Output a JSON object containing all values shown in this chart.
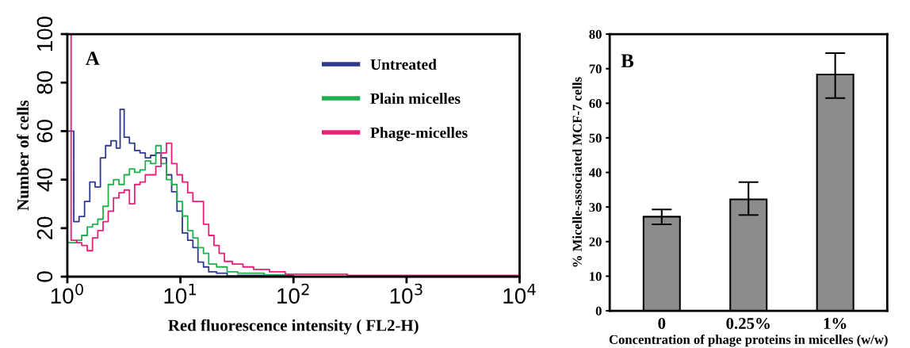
{
  "chart_data": [
    {
      "type": "step",
      "xlabel": "Red fluorescence intensity ( FL2-H)",
      "ylabel": "Number of cells",
      "log": "x",
      "xlim": [
        1,
        10000
      ],
      "ylim": [
        0,
        100
      ],
      "xticks": [
        {
          "value": 1,
          "label": "10$^{0}$"
        },
        {
          "value": 10,
          "label": "10$^{1}$"
        },
        {
          "value": 100,
          "label": "10$^{2}$"
        },
        {
          "value": 1000,
          "label": "10$^{3}$"
        },
        {
          "value": 10000,
          "label": "10$^{4}$"
        }
      ],
      "yticks": [
        0,
        20,
        40,
        60,
        80,
        100
      ],
      "grid": false,
      "legend": "top right",
      "annotations": [
        "A"
      ],
      "series": [
        {
          "name": "Untreated",
          "color": "#2b3990",
          "x": [
            1.0,
            1.05,
            1.14,
            1.27,
            1.42,
            1.58,
            1.76,
            1.96,
            2.18,
            2.43,
            2.71,
            2.93,
            3.18,
            3.54,
            3.94,
            4.39,
            4.89,
            5.45,
            6.06,
            6.75,
            7.52,
            8.37,
            9.33,
            10.4,
            11.6,
            12.9,
            14.3,
            16.0,
            17.8,
            20.9,
            25.9,
            32.1,
            55,
            100
          ],
          "values": [
            60,
            60,
            22.7,
            24.8,
            31,
            39,
            37,
            49,
            54,
            56,
            53,
            69,
            57.5,
            55,
            52,
            51,
            49,
            50,
            51,
            49,
            42,
            35,
            27,
            18,
            15,
            12,
            6,
            4,
            2,
            1.4,
            0.3,
            0.5,
            0.5,
            0.5
          ]
        },
        {
          "name": "Plain micelles",
          "color": "#1fb04b",
          "x": [
            1.0,
            1.05,
            1.21,
            1.34,
            1.5,
            1.67,
            1.86,
            2.07,
            2.3,
            2.56,
            2.86,
            3.18,
            3.54,
            3.94,
            4.39,
            4.89,
            5.45,
            6.06,
            6.75,
            7.52,
            8.37,
            9.33,
            10.4,
            11.6,
            12.9,
            14.3,
            16.0,
            17.8,
            20.9,
            25.9,
            32.1,
            55,
            100
          ],
          "values": [
            14,
            14,
            15,
            17,
            20.5,
            21.6,
            23.7,
            29,
            38,
            40,
            38,
            42,
            44.4,
            43,
            44,
            47.7,
            46.6,
            54,
            46.6,
            40,
            38,
            31,
            25,
            19,
            16,
            12,
            9.6,
            5.2,
            4,
            2,
            1.4,
            0.8,
            0.5
          ]
        },
        {
          "name": "Phage-micelles",
          "color": "#e8207a",
          "x": [
            1.0,
            1.08,
            1.21,
            1.34,
            1.5,
            1.67,
            1.86,
            2.07,
            2.3,
            2.56,
            2.86,
            3.18,
            3.54,
            3.94,
            4.39,
            4.89,
            5.45,
            6.06,
            6.75,
            7.52,
            8.37,
            9.33,
            10.4,
            11.6,
            12.9,
            14.3,
            16.0,
            17.8,
            19.8,
            22.0,
            24.5,
            28.8,
            35.8,
            44.4,
            61.3,
            84.7,
            300,
            1000,
            3000,
            10000
          ],
          "values": [
            100,
            15,
            14,
            12.9,
            10.7,
            16,
            19,
            22.7,
            27,
            32.5,
            34.6,
            35.7,
            30,
            38,
            39,
            42,
            42,
            45.5,
            51,
            55,
            46.6,
            42,
            39,
            34.6,
            31,
            31,
            21.6,
            17,
            12.9,
            9.6,
            6.3,
            5.2,
            4,
            3,
            2,
            1,
            0.5,
            0.5,
            0.5,
            0.5
          ]
        }
      ]
    },
    {
      "type": "bar",
      "xlabel": "Concentration of phage proteins in micelles (w/w)",
      "ylabel": "% Micelle-associated MCF-7 cells",
      "categories": [
        "0",
        "0.25%",
        "1%"
      ],
      "values": [
        27.2,
        32.2,
        68.3
      ],
      "errors": [
        [
          25.0,
          29.3
        ],
        [
          27.7,
          37.2
        ],
        [
          61.5,
          74.5
        ]
      ],
      "color": "#8c8c8c",
      "ylim": [
        0,
        80
      ],
      "yticks": [
        0,
        10,
        20,
        30,
        40,
        50,
        60,
        70,
        80
      ],
      "grid": false,
      "annotations": [
        "B"
      ]
    }
  ]
}
